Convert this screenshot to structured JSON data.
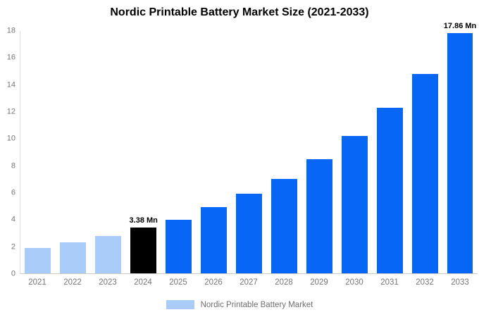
{
  "title": "Nordic Printable Battery Market Size (2021-2033)",
  "legend": {
    "label": "Nordic Printable Battery Market",
    "swatch_color": "#a9cdf8"
  },
  "chart_data": {
    "type": "bar",
    "title": "Nordic Printable Battery Market Size (2021-2033)",
    "categories": [
      "2021",
      "2022",
      "2023",
      "2024",
      "2025",
      "2026",
      "2027",
      "2028",
      "2029",
      "2030",
      "2031",
      "2032",
      "2033"
    ],
    "values": [
      1.9,
      2.3,
      2.8,
      3.38,
      4.0,
      4.9,
      5.9,
      7.0,
      8.5,
      10.2,
      12.3,
      14.8,
      17.86
    ],
    "segments": [
      "historical",
      "historical",
      "historical",
      "current",
      "forecast",
      "forecast",
      "forecast",
      "forecast",
      "forecast",
      "forecast",
      "forecast",
      "forecast",
      "forecast"
    ],
    "data_labels": [
      "",
      "",
      "",
      "3.38 Mn",
      "",
      "",
      "",
      "",
      "",
      "",
      "",
      "",
      "17.86 Mn"
    ],
    "segment_colors": {
      "historical": "#a9cdf8",
      "current": "#000000",
      "forecast": "#0866f7"
    },
    "xlabel": "",
    "ylabel": "",
    "ylim": [
      0,
      18
    ],
    "y_ticks": [
      0,
      2,
      4,
      6,
      8,
      10,
      12,
      14,
      16,
      18
    ],
    "grid": false,
    "legend_position": "bottom",
    "axis_text_color": "#757575"
  }
}
